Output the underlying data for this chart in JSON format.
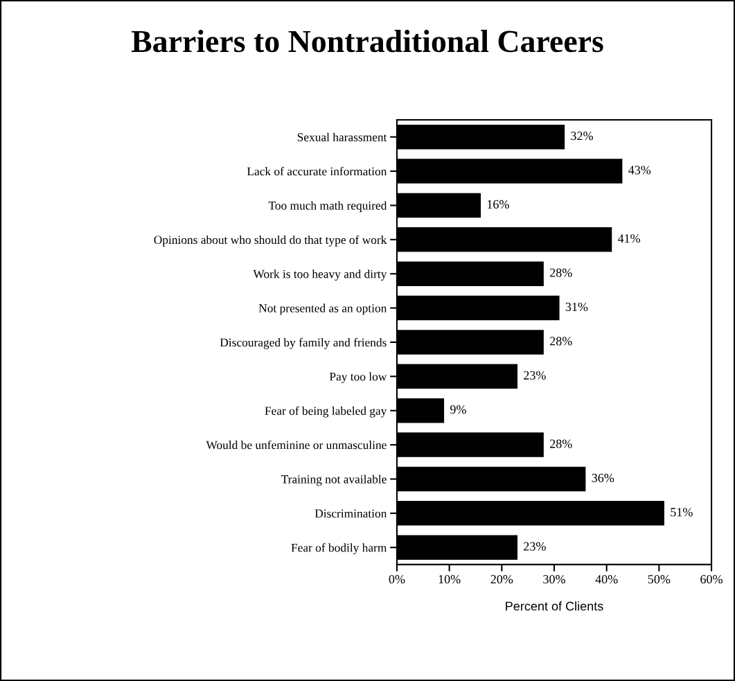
{
  "chart_data": {
    "type": "bar",
    "orientation": "horizontal",
    "title": "Barriers to Nontraditional Careers",
    "xlabel": "Percent of Clients",
    "categories": [
      "Sexual harassment",
      "Lack of accurate information",
      "Too much math required",
      "Opinions about who should do that type of work",
      "Work is too heavy and dirty",
      "Not presented as an option",
      "Discouraged by family and friends",
      "Pay too low",
      "Fear of being labeled gay",
      "Would be unfeminine or unmasculine",
      "Training not available",
      "Discrimination",
      "Fear of bodily harm"
    ],
    "values": [
      32,
      43,
      16,
      41,
      28,
      31,
      28,
      23,
      9,
      28,
      36,
      51,
      23
    ],
    "value_labels": [
      "32%",
      "43%",
      "16%",
      "41%",
      "28%",
      "31%",
      "28%",
      "23%",
      "9%",
      "28%",
      "36%",
      "51%",
      "23%"
    ],
    "color": "#000000",
    "xlim": [
      0,
      60
    ],
    "xticks": [
      {
        "value": 0,
        "label": "0%"
      },
      {
        "value": 10,
        "label": "10%"
      },
      {
        "value": 20,
        "label": "20%"
      },
      {
        "value": 30,
        "label": "30%"
      },
      {
        "value": 40,
        "label": "40%"
      },
      {
        "value": 50,
        "label": "50%"
      },
      {
        "value": 60,
        "label": "60%"
      }
    ],
    "grid": false
  }
}
